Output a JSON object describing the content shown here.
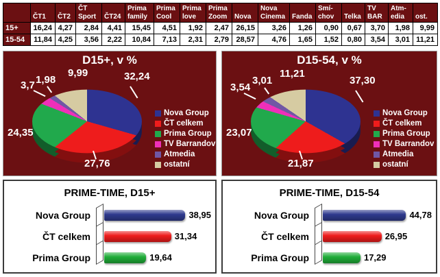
{
  "table": {
    "corner": "",
    "columns": [
      "ČT1",
      "ČT2",
      "ČT Sport",
      "ČT24",
      "Prima family",
      "Prima Cool",
      "Prima love",
      "Prima Zoom",
      "Nova",
      "Nova Cinema",
      "Fanda",
      "Smí-chov",
      "Telka",
      "TV BAR",
      "Atm-edia",
      "ost."
    ],
    "rows": [
      {
        "label": "15+",
        "values": [
          "16,24",
          "4,27",
          "2,84",
          "4,41",
          "15,45",
          "4,51",
          "1,92",
          "2,47",
          "26,15",
          "3,26",
          "1,26",
          "0,90",
          "0,67",
          "3,70",
          "1,98",
          "9,99"
        ]
      },
      {
        "label": "15-54",
        "values": [
          "11,84",
          "4,25",
          "3,56",
          "2,22",
          "10,84",
          "7,13",
          "2,31",
          "2,79",
          "28,57",
          "4,76",
          "1,65",
          "1,52",
          "0,80",
          "3,54",
          "3,01",
          "11,21"
        ]
      }
    ]
  },
  "colors": {
    "panel_maroon": "#6B1012",
    "navy": "#2E3391",
    "red": "#EE1C1C",
    "green": "#21A94C",
    "magenta": "#EF2FB9",
    "purple": "#7057A5",
    "tan": "#D6CBA2"
  },
  "chart_data": [
    {
      "type": "pie",
      "title": "D15+, v %",
      "unit": "%",
      "legend_position": "right",
      "slices": [
        {
          "name": "Nova Group",
          "value": 32.24,
          "label": "32,24",
          "color": "#2E3391"
        },
        {
          "name": "ČT celkem",
          "value": 27.76,
          "label": "27,76",
          "color": "#EE1C1C"
        },
        {
          "name": "Prima Group",
          "value": 24.35,
          "label": "24,35",
          "color": "#21A94C"
        },
        {
          "name": "TV Barrandov",
          "value": 3.7,
          "label": "3,7",
          "color": "#EF2FB9"
        },
        {
          "name": "Atmedia",
          "value": 1.98,
          "label": "1,98",
          "color": "#7057A5"
        },
        {
          "name": "ostatní",
          "value": 9.99,
          "label": "9,99",
          "color": "#D6CBA2"
        }
      ]
    },
    {
      "type": "pie",
      "title": "D15-54, v %",
      "unit": "%",
      "legend_position": "right",
      "slices": [
        {
          "name": "Nova Group",
          "value": 37.3,
          "label": "37,30",
          "color": "#2E3391"
        },
        {
          "name": "ČT celkem",
          "value": 21.87,
          "label": "21,87",
          "color": "#EE1C1C"
        },
        {
          "name": "Prima Group",
          "value": 23.07,
          "label": "23,07",
          "color": "#21A94C"
        },
        {
          "name": "TV Barrandov",
          "value": 3.54,
          "label": "3,54",
          "color": "#EF2FB9"
        },
        {
          "name": "Atmedia",
          "value": 3.01,
          "label": "3,01",
          "color": "#7057A5"
        },
        {
          "name": "ostatní",
          "value": 11.21,
          "label": "11,21",
          "color": "#D6CBA2"
        }
      ]
    },
    {
      "type": "bar",
      "title": "PRIME-TIME, D15+",
      "orientation": "horizontal",
      "categories": [
        "Nova Group",
        "ČT celkem",
        "Prima Group"
      ],
      "values": [
        38.95,
        31.34,
        19.64
      ],
      "labels": [
        "38,95",
        "31,34",
        "19,64"
      ],
      "colors": [
        "#2E3A8E",
        "#EE1C1C",
        "#1FAD38"
      ],
      "axis_max": 50
    },
    {
      "type": "bar",
      "title": "PRIME-TIME, D15-54",
      "orientation": "horizontal",
      "categories": [
        "Nova Group",
        "ČT celkem",
        "Prima Group"
      ],
      "values": [
        44.78,
        26.95,
        17.29
      ],
      "labels": [
        "44,78",
        "26,95",
        "17,29"
      ],
      "colors": [
        "#2E3A8E",
        "#EE1C1C",
        "#1FAD38"
      ],
      "axis_max": 50
    }
  ]
}
